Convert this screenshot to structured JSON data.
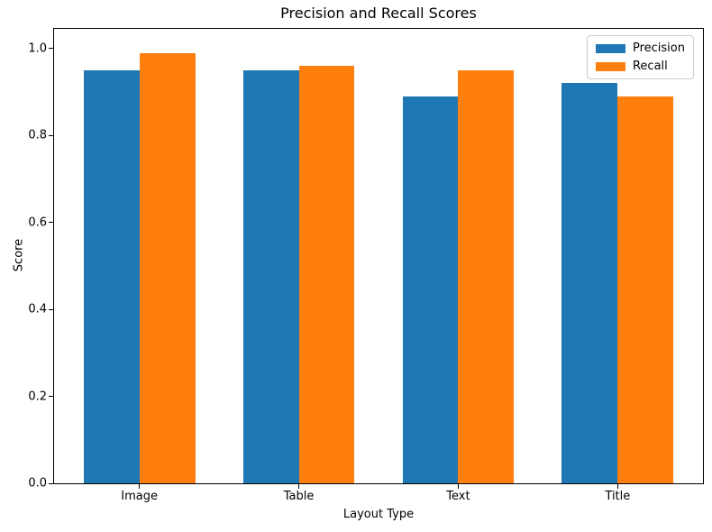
{
  "chart_data": {
    "type": "bar",
    "title": "Precision and Recall Scores",
    "xlabel": "Layout Type",
    "ylabel": "Score",
    "categories": [
      "Image",
      "Table",
      "Text",
      "Title"
    ],
    "series": [
      {
        "name": "Precision",
        "color": "#1f77b4",
        "values": [
          0.95,
          0.95,
          0.89,
          0.92
        ]
      },
      {
        "name": "Recall",
        "color": "#ff7f0e",
        "values": [
          0.99,
          0.96,
          0.95,
          0.89
        ]
      }
    ],
    "yticks": [
      0.0,
      0.2,
      0.4,
      0.6,
      0.8,
      1.0
    ],
    "ylim": [
      0,
      1.045
    ],
    "xlim": [
      -0.535,
      3.535
    ],
    "bar_width_units": 0.35,
    "legend_position": "upper right",
    "grid": false,
    "colors": {
      "background": "#ffffff",
      "spine": "#000000",
      "text": "#000000"
    }
  }
}
